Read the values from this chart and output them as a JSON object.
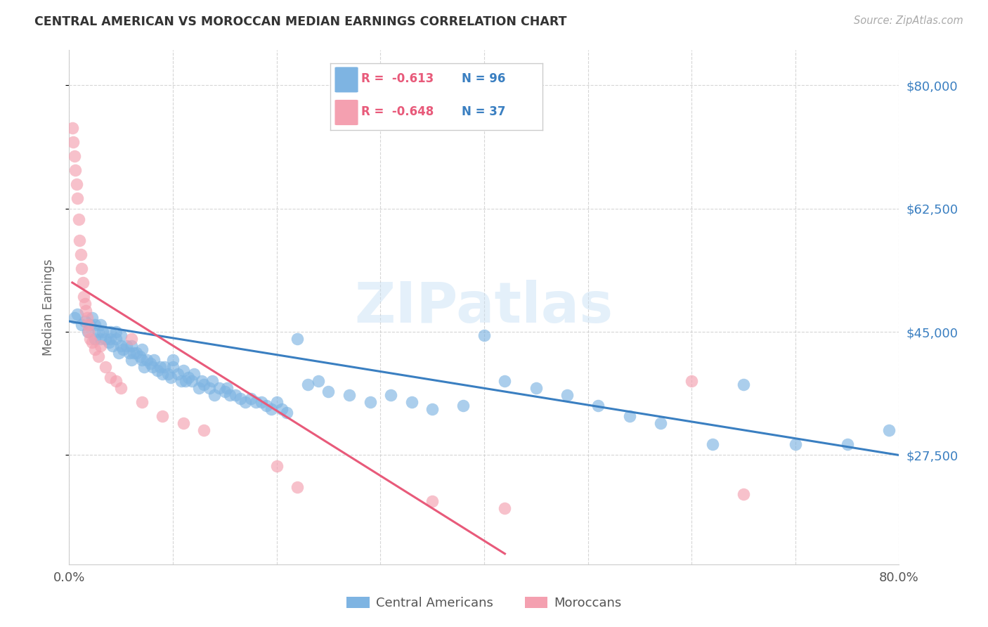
{
  "title": "CENTRAL AMERICAN VS MOROCCAN MEDIAN EARNINGS CORRELATION CHART",
  "source": "Source: ZipAtlas.com",
  "ylabel": "Median Earnings",
  "xlim": [
    0.0,
    0.8
  ],
  "ylim": [
    12000,
    85000
  ],
  "yticks": [
    27500,
    45000,
    62500,
    80000
  ],
  "ytick_labels": [
    "$27,500",
    "$45,000",
    "$62,500",
    "$80,000"
  ],
  "xtick_positions": [
    0.0,
    0.1,
    0.2,
    0.3,
    0.4,
    0.5,
    0.6,
    0.7,
    0.8
  ],
  "xtick_labels": [
    "0.0%",
    "",
    "",
    "",
    "",
    "",
    "",
    "",
    "80.0%"
  ],
  "blue_color": "#7EB4E2",
  "pink_color": "#F4A0B0",
  "blue_line_color": "#3A7FC1",
  "pink_line_color": "#E85A7A",
  "legend_R_blue": "-0.613",
  "legend_N_blue": "96",
  "legend_R_pink": "-0.648",
  "legend_N_pink": "37",
  "watermark": "ZIPatlas",
  "blue_scatter_x": [
    0.005,
    0.008,
    0.012,
    0.015,
    0.018,
    0.02,
    0.022,
    0.025,
    0.025,
    0.028,
    0.03,
    0.03,
    0.032,
    0.035,
    0.038,
    0.04,
    0.04,
    0.042,
    0.045,
    0.045,
    0.048,
    0.05,
    0.05,
    0.052,
    0.055,
    0.058,
    0.06,
    0.06,
    0.062,
    0.065,
    0.068,
    0.07,
    0.07,
    0.072,
    0.075,
    0.078,
    0.08,
    0.082,
    0.085,
    0.088,
    0.09,
    0.092,
    0.095,
    0.098,
    0.1,
    0.1,
    0.105,
    0.108,
    0.11,
    0.112,
    0.115,
    0.118,
    0.12,
    0.125,
    0.128,
    0.13,
    0.135,
    0.138,
    0.14,
    0.145,
    0.15,
    0.152,
    0.155,
    0.16,
    0.165,
    0.17,
    0.175,
    0.18,
    0.185,
    0.19,
    0.195,
    0.2,
    0.205,
    0.21,
    0.22,
    0.23,
    0.24,
    0.25,
    0.27,
    0.29,
    0.31,
    0.33,
    0.35,
    0.38,
    0.4,
    0.42,
    0.45,
    0.48,
    0.51,
    0.54,
    0.57,
    0.62,
    0.65,
    0.7,
    0.75,
    0.79
  ],
  "blue_scatter_y": [
    47000,
    47500,
    46000,
    46500,
    45000,
    46000,
    47000,
    44000,
    46000,
    45000,
    44000,
    46000,
    45000,
    44000,
    43500,
    44000,
    45000,
    43000,
    44000,
    45000,
    42000,
    43000,
    44500,
    42500,
    43000,
    42000,
    41000,
    43000,
    42000,
    42000,
    41500,
    41000,
    42500,
    40000,
    41000,
    40500,
    40000,
    41000,
    39500,
    40000,
    39000,
    40000,
    39000,
    38500,
    40000,
    41000,
    39000,
    38000,
    39500,
    38000,
    38500,
    38000,
    39000,
    37000,
    38000,
    37500,
    37000,
    38000,
    36000,
    37000,
    36500,
    37000,
    36000,
    36000,
    35500,
    35000,
    35500,
    35000,
    35000,
    34500,
    34000,
    35000,
    34000,
    33500,
    44000,
    37500,
    38000,
    36500,
    36000,
    35000,
    36000,
    35000,
    34000,
    34500,
    44500,
    38000,
    37000,
    36000,
    34500,
    33000,
    32000,
    29000,
    37500,
    29000,
    29000,
    31000
  ],
  "pink_scatter_x": [
    0.003,
    0.004,
    0.005,
    0.006,
    0.007,
    0.008,
    0.009,
    0.01,
    0.011,
    0.012,
    0.013,
    0.014,
    0.015,
    0.016,
    0.017,
    0.018,
    0.019,
    0.02,
    0.022,
    0.025,
    0.028,
    0.03,
    0.035,
    0.04,
    0.045,
    0.05,
    0.06,
    0.07,
    0.09,
    0.11,
    0.13,
    0.2,
    0.22,
    0.35,
    0.42,
    0.6,
    0.65
  ],
  "pink_scatter_y": [
    74000,
    72000,
    70000,
    68000,
    66000,
    64000,
    61000,
    58000,
    56000,
    54000,
    52000,
    50000,
    49000,
    48000,
    47000,
    46000,
    45000,
    44000,
    43500,
    42500,
    41500,
    43000,
    40000,
    38500,
    38000,
    37000,
    44000,
    35000,
    33000,
    32000,
    31000,
    26000,
    23000,
    21000,
    20000,
    38000,
    22000
  ],
  "blue_trendline_x": [
    0.0,
    0.8
  ],
  "blue_trendline_y": [
    46500,
    27500
  ],
  "pink_trendline_x": [
    0.003,
    0.42
  ],
  "pink_trendline_y": [
    52000,
    13500
  ]
}
